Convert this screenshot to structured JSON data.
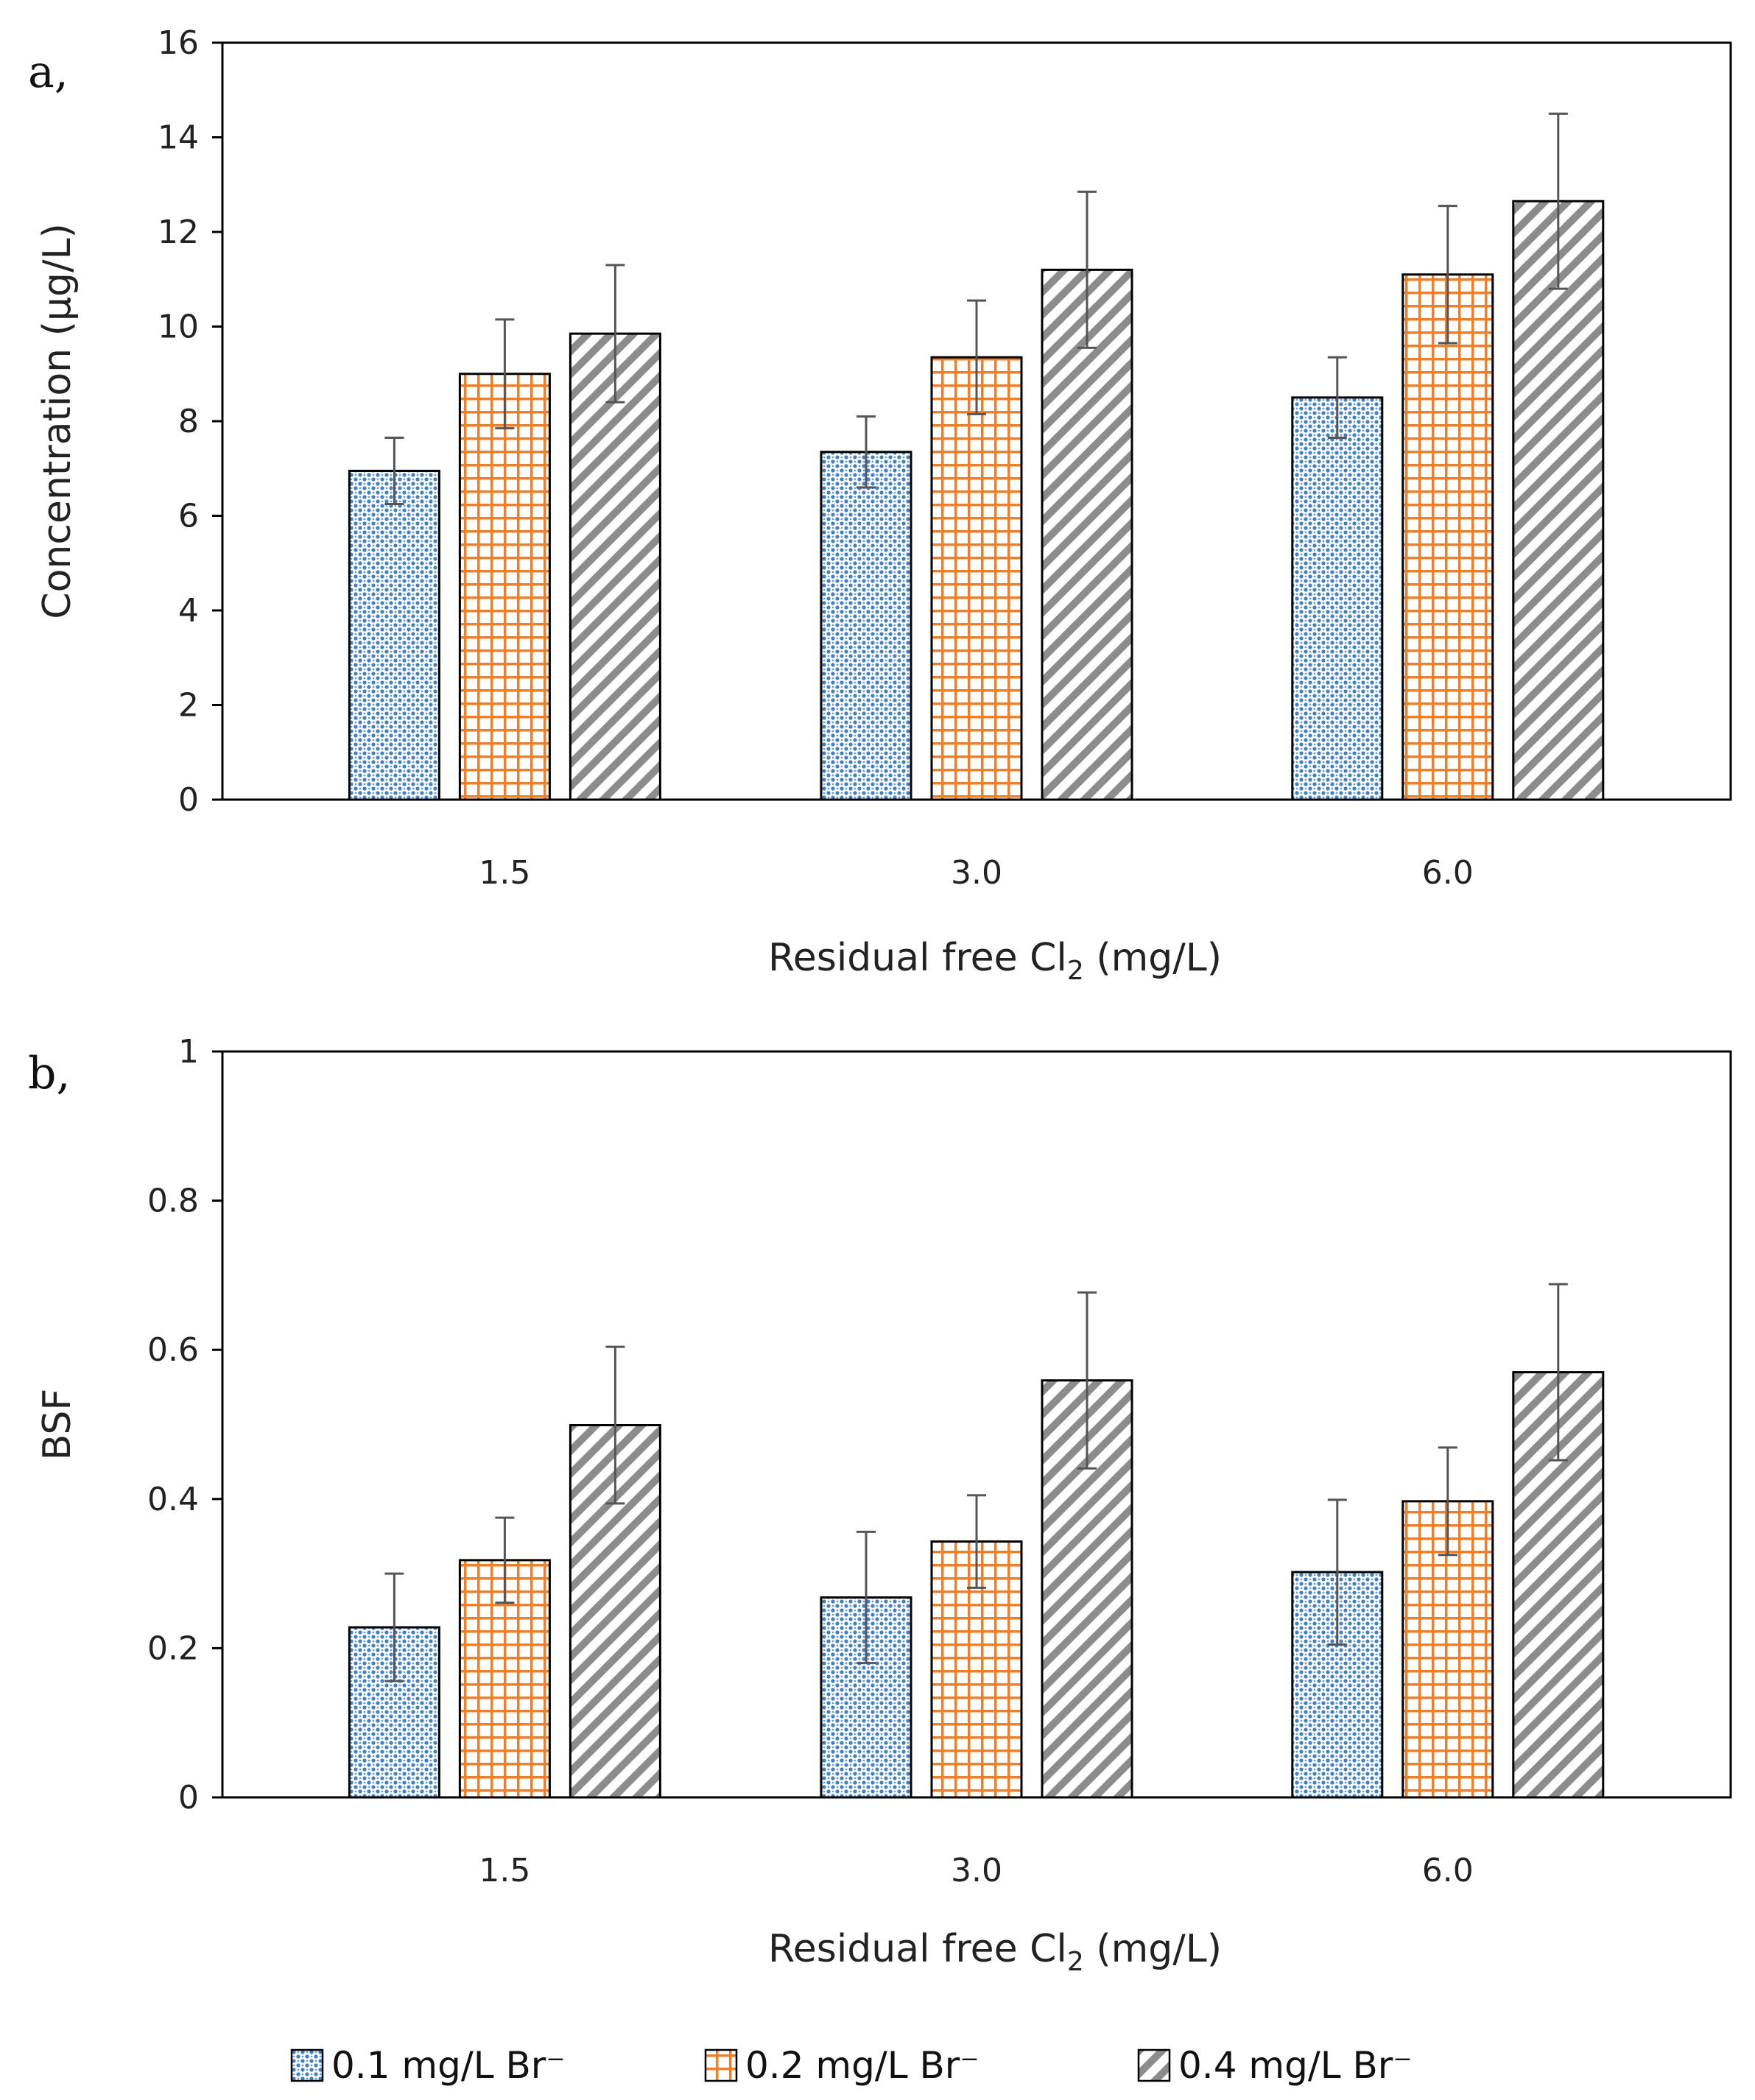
{
  "chart_data": [
    {
      "type": "bar",
      "panel_label": "a,",
      "categories": [
        "1.5",
        "3.0",
        "6.0"
      ],
      "series": [
        {
          "name": "0.1 mg/L Br⁻",
          "values": [
            6.95,
            7.35,
            8.5
          ],
          "errors": [
            0.7,
            0.75,
            0.85
          ]
        },
        {
          "name": "0.2 mg/L Br⁻",
          "values": [
            9.0,
            9.35,
            11.1
          ],
          "errors": [
            1.15,
            1.2,
            1.45
          ]
        },
        {
          "name": "0.4 mg/L Br⁻",
          "values": [
            9.85,
            11.2,
            12.65
          ],
          "errors": [
            1.45,
            1.65,
            1.85
          ]
        }
      ],
      "xlabel": "Residual free Cl₂ (mg/L)",
      "ylabel": "Concentration (µg/L)",
      "ylim": [
        0,
        16
      ],
      "yticks": [
        "0",
        "2",
        "4",
        "6",
        "8",
        "10",
        "12",
        "14",
        "16"
      ],
      "grid": false
    },
    {
      "type": "bar",
      "panel_label": "b,",
      "categories": [
        "1.5",
        "3.0",
        "6.0"
      ],
      "series": [
        {
          "name": "0.1 mg/L Br⁻",
          "values": [
            0.228,
            0.268,
            0.302
          ],
          "errors": [
            0.072,
            0.088,
            0.097
          ]
        },
        {
          "name": "0.2 mg/L Br⁻",
          "values": [
            0.318,
            0.343,
            0.397
          ],
          "errors": [
            0.057,
            0.062,
            0.072
          ]
        },
        {
          "name": "0.4 mg/L Br⁻",
          "values": [
            0.499,
            0.559,
            0.57
          ],
          "errors": [
            0.105,
            0.118,
            0.118
          ]
        }
      ],
      "xlabel": "Residual free Cl₂ (mg/L)",
      "ylabel": "BSF",
      "ylim": [
        0,
        1
      ],
      "yticks": [
        "0",
        "0.2",
        "0.4",
        "0.6",
        "0.8",
        "1"
      ],
      "grid": false
    }
  ],
  "legend": {
    "placement": "bottom",
    "items": [
      "0.1 mg/L Br⁻",
      "0.2 mg/L Br⁻",
      "0.4 mg/L Br⁻"
    ]
  },
  "colors": {
    "series1": "#3f7fc6",
    "series2": "#f07f2a",
    "series3": "#8c8c8c",
    "axis": "#000000",
    "errorbar": "#555555"
  }
}
